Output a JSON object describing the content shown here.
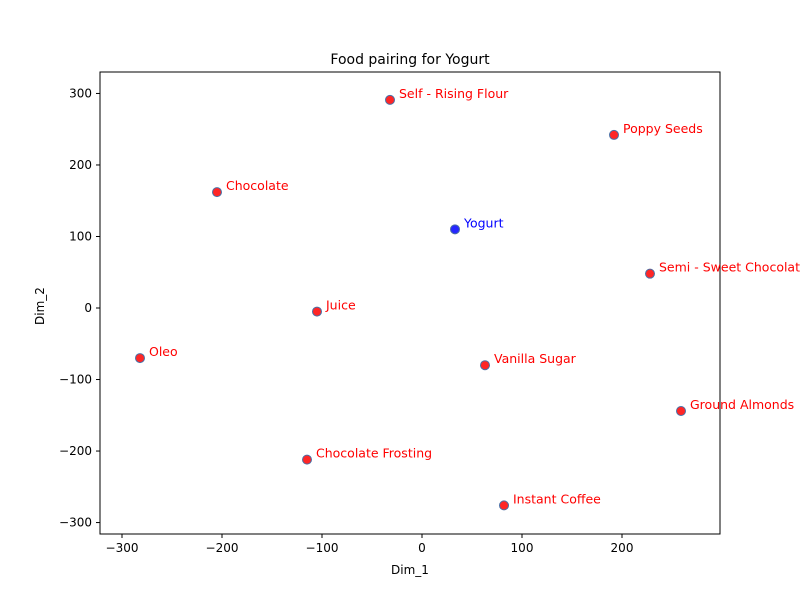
{
  "chart_data": {
    "type": "scatter",
    "title": "Food pairing for Yogurt",
    "xlabel": "Dim_1",
    "ylabel": "Dim_2",
    "xlim": [
      -322,
      298
    ],
    "ylim": [
      -316,
      330
    ],
    "xticks": [
      -300,
      -200,
      -100,
      0,
      100,
      200
    ],
    "yticks": [
      -300,
      -200,
      -100,
      0,
      100,
      200,
      300
    ],
    "grid": false,
    "point_edge_color": "#4a6fa5",
    "points": [
      {
        "label": "Self - Rising Flour",
        "x": -32,
        "y": 291,
        "color": "#ff0000"
      },
      {
        "label": "Poppy Seeds",
        "x": 192,
        "y": 242,
        "color": "#ff0000"
      },
      {
        "label": "Chocolate",
        "x": -205,
        "y": 162,
        "color": "#ff0000"
      },
      {
        "label": "Yogurt",
        "x": 33,
        "y": 110,
        "color": "#0000ff"
      },
      {
        "label": "Semi - Sweet Chocolate",
        "x": 228,
        "y": 48,
        "color": "#ff0000"
      },
      {
        "label": "Juice",
        "x": -105,
        "y": -5,
        "color": "#ff0000"
      },
      {
        "label": "Oleo",
        "x": -282,
        "y": -70,
        "color": "#ff0000"
      },
      {
        "label": "Vanilla Sugar",
        "x": 63,
        "y": -80,
        "color": "#ff0000"
      },
      {
        "label": "Ground Almonds",
        "x": 259,
        "y": -144,
        "color": "#ff0000"
      },
      {
        "label": "Chocolate Frosting",
        "x": -115,
        "y": -212,
        "color": "#ff0000"
      },
      {
        "label": "Instant Coffee",
        "x": 82,
        "y": -276,
        "color": "#ff0000"
      }
    ]
  }
}
